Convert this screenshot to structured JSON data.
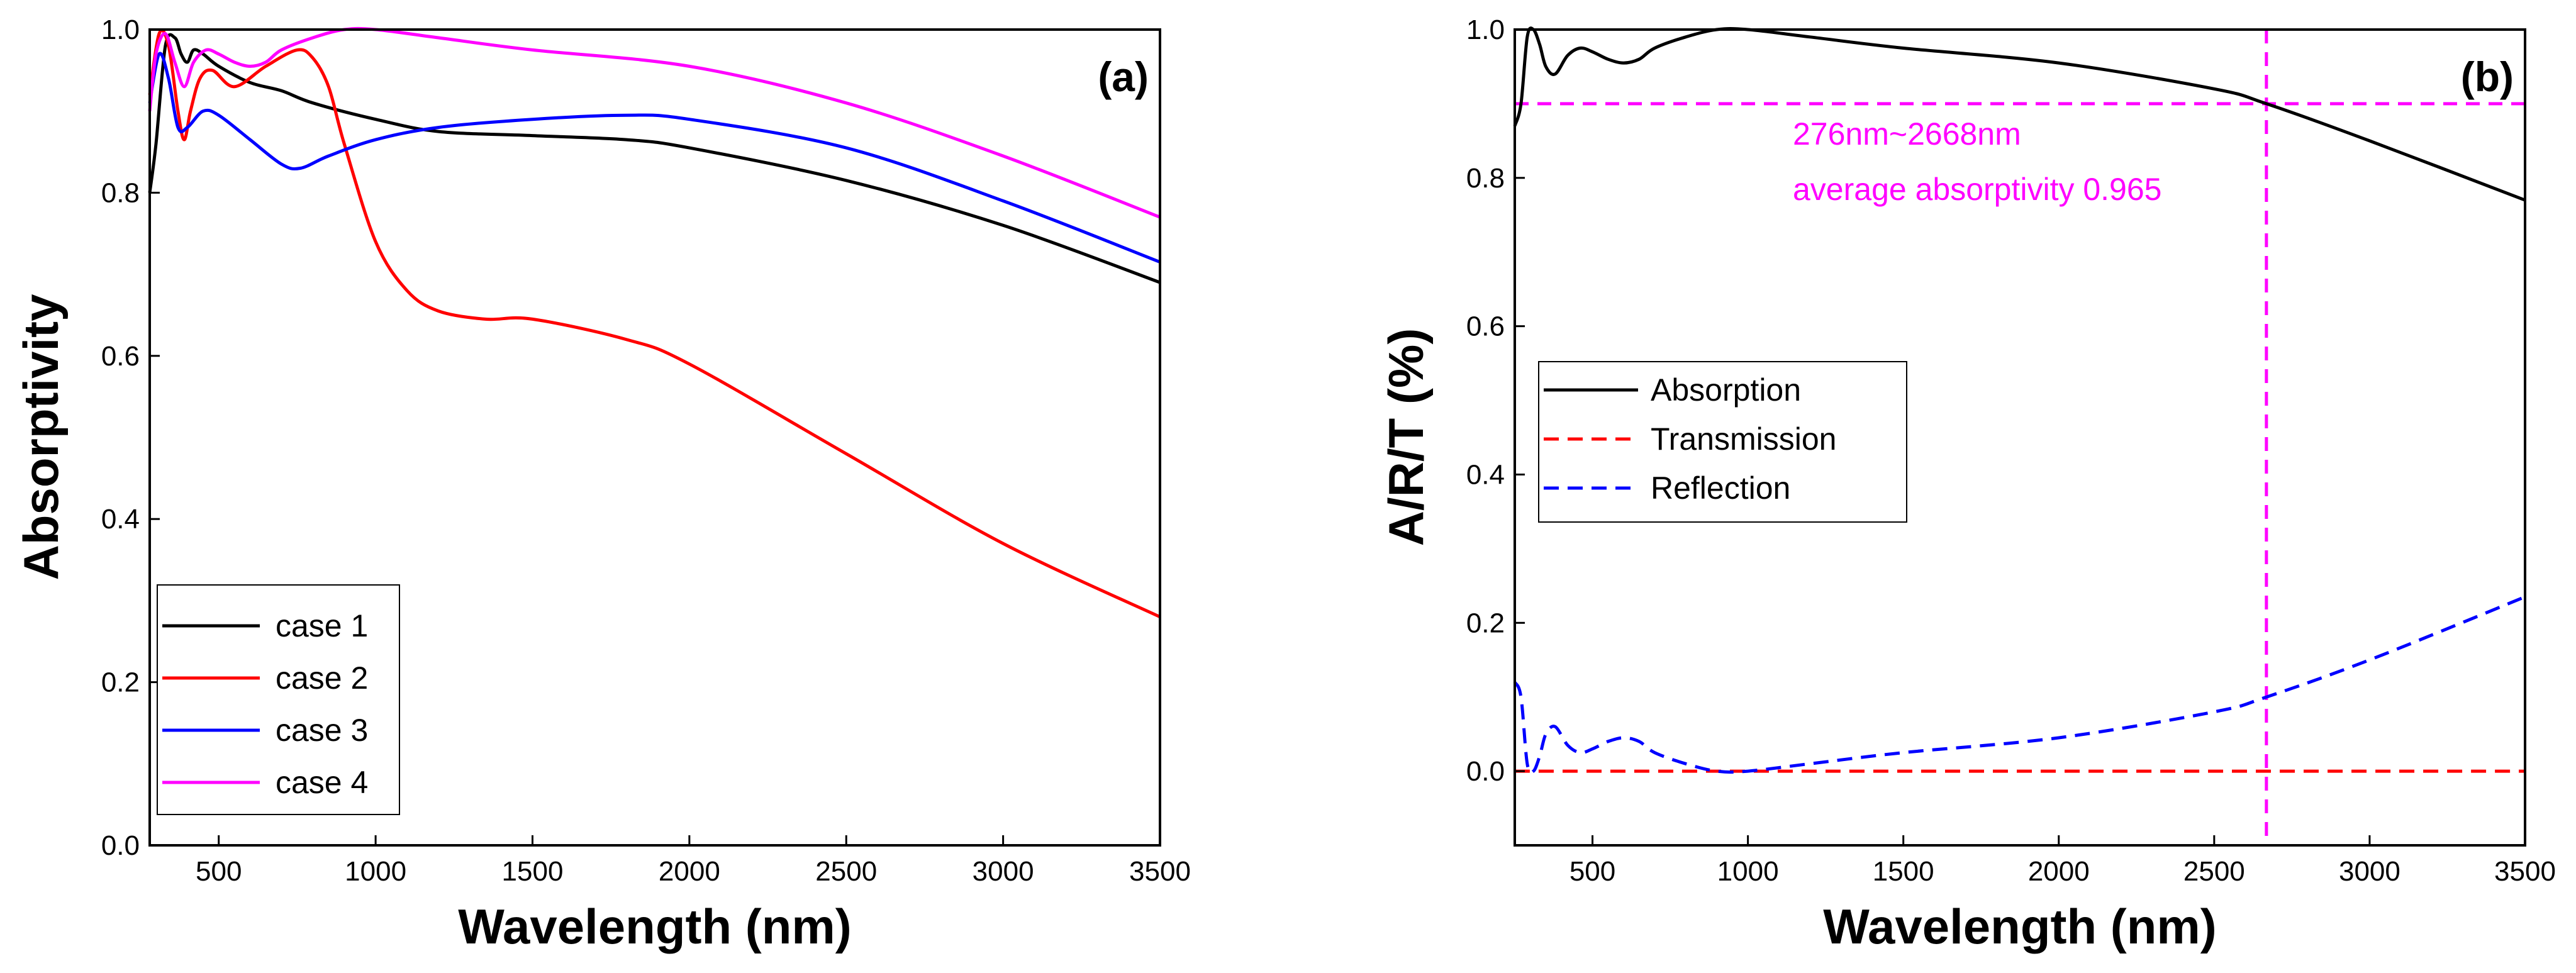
{
  "chart_data": [
    {
      "panel": "(a)",
      "type": "line",
      "xlabel": "Wavelength (nm)",
      "ylabel": "Absorptivity",
      "xlim": [
        280,
        3500
      ],
      "ylim": [
        0,
        1.0
      ],
      "xticks": [
        500,
        1000,
        1500,
        2000,
        2500,
        3000,
        3500
      ],
      "xtick_labels": [
        "500",
        "1000",
        "1500",
        "2000",
        "2500",
        "3000",
        "3500"
      ],
      "yticks": [
        0,
        0.2,
        0.4,
        0.6,
        0.8,
        1.0
      ],
      "ytick_labels": [
        "0.0",
        "0.2",
        "0.4",
        "0.6",
        "0.8",
        "1.0"
      ],
      "legend_position": "bottom-left",
      "series": [
        {
          "name": "case 1",
          "color": "#000000",
          "dash": false,
          "x": [
            280,
            300,
            330,
            360,
            380,
            400,
            420,
            450,
            500,
            600,
            700,
            800,
            1000,
            1200,
            1500,
            1800,
            2000,
            2500,
            3000,
            3500
          ],
          "y": [
            0.8,
            0.86,
            0.98,
            0.99,
            0.97,
            0.96,
            0.975,
            0.97,
            0.955,
            0.935,
            0.925,
            0.91,
            0.89,
            0.875,
            0.87,
            0.865,
            0.855,
            0.815,
            0.76,
            0.69
          ]
        },
        {
          "name": "case 2",
          "color": "#ff0000",
          "dash": false,
          "x": [
            280,
            310,
            340,
            370,
            390,
            410,
            440,
            480,
            550,
            650,
            750,
            800,
            850,
            900,
            1000,
            1100,
            1200,
            1350,
            1500,
            1800,
            2000,
            2500,
            3000,
            3500
          ],
          "y": [
            0.92,
            0.995,
            0.98,
            0.9,
            0.865,
            0.9,
            0.94,
            0.95,
            0.93,
            0.955,
            0.975,
            0.965,
            0.93,
            0.86,
            0.74,
            0.68,
            0.655,
            0.645,
            0.645,
            0.62,
            0.59,
            0.48,
            0.37,
            0.28
          ]
        },
        {
          "name": "case 3",
          "color": "#0000ff",
          "dash": false,
          "x": [
            280,
            310,
            340,
            370,
            400,
            450,
            500,
            600,
            700,
            760,
            850,
            1000,
            1200,
            1500,
            1800,
            2000,
            2500,
            3000,
            3500
          ],
          "y": [
            0.91,
            0.97,
            0.94,
            0.88,
            0.88,
            0.9,
            0.895,
            0.865,
            0.835,
            0.83,
            0.845,
            0.865,
            0.88,
            0.89,
            0.895,
            0.89,
            0.855,
            0.79,
            0.715
          ]
        },
        {
          "name": "case 4",
          "color": "#ff00ff",
          "dash": false,
          "x": [
            280,
            300,
            330,
            360,
            390,
            420,
            460,
            500,
            550,
            600,
            650,
            700,
            800,
            900,
            1000,
            1200,
            1500,
            2000,
            2500,
            3000,
            3500
          ],
          "y": [
            0.9,
            0.97,
            0.995,
            0.96,
            0.93,
            0.96,
            0.975,
            0.97,
            0.96,
            0.955,
            0.96,
            0.975,
            0.99,
            1.0,
            1.0,
            0.99,
            0.975,
            0.955,
            0.91,
            0.845,
            0.77
          ]
        }
      ]
    },
    {
      "panel": "(b)",
      "type": "line",
      "xlabel": "Wavelength (nm)",
      "ylabel": "A/R/T (%)",
      "xlim": [
        250,
        3500
      ],
      "ylim": [
        -0.1,
        1.0
      ],
      "xticks": [
        500,
        1000,
        1500,
        2000,
        2500,
        3000,
        3500
      ],
      "xtick_labels": [
        "500",
        "1000",
        "1500",
        "2000",
        "2500",
        "3000",
        "3500"
      ],
      "yticks": [
        0,
        0.2,
        0.4,
        0.6,
        0.8,
        1.0
      ],
      "ytick_labels": [
        "0.0",
        "0.2",
        "0.4",
        "0.6",
        "0.8",
        "1.0"
      ],
      "legend_position": "middle-left",
      "series": [
        {
          "name": "Absorption",
          "color": "#000000",
          "dash": false,
          "x": [
            250,
            270,
            290,
            310,
            330,
            350,
            380,
            420,
            460,
            500,
            550,
            600,
            650,
            700,
            800,
            900,
            1000,
            1200,
            1500,
            2000,
            2500,
            2668,
            3000,
            3500
          ],
          "y": [
            0.87,
            0.9,
            0.99,
            1.0,
            0.98,
            0.95,
            0.94,
            0.965,
            0.975,
            0.97,
            0.96,
            0.955,
            0.96,
            0.975,
            0.99,
            1.0,
            1.0,
            0.99,
            0.975,
            0.955,
            0.92,
            0.9,
            0.85,
            0.77
          ]
        },
        {
          "name": "Transmission",
          "color": "#ff0000",
          "dash": true,
          "x": [
            250,
            3500
          ],
          "y": [
            0.0,
            0.0
          ]
        },
        {
          "name": "Reflection",
          "color": "#0000ff",
          "dash": true,
          "x": [
            250,
            270,
            290,
            310,
            330,
            350,
            380,
            420,
            460,
            500,
            550,
            600,
            650,
            700,
            800,
            900,
            1000,
            1200,
            1500,
            2000,
            2500,
            2668,
            3000,
            3500
          ],
          "y": [
            0.12,
            0.1,
            0.01,
            0.0,
            0.02,
            0.05,
            0.06,
            0.035,
            0.025,
            0.03,
            0.04,
            0.045,
            0.04,
            0.025,
            0.01,
            0.0,
            0.0,
            0.01,
            0.025,
            0.045,
            0.08,
            0.1,
            0.15,
            0.235
          ]
        }
      ],
      "reference_lines": [
        {
          "orientation": "horizontal",
          "value": 0.9,
          "color": "#ff00ff"
        },
        {
          "orientation": "vertical",
          "value": 2668,
          "color": "#ff00ff"
        }
      ],
      "annotations": [
        {
          "text": "276nm~2668nm",
          "color": "#ff00ff"
        },
        {
          "text": "average absorptivity 0.965",
          "color": "#ff00ff"
        }
      ]
    }
  ]
}
